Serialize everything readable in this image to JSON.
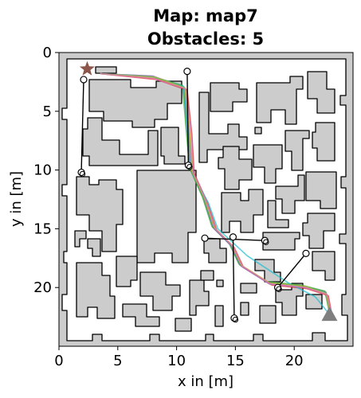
{
  "chart_data": {
    "type": "scatter",
    "title_line1": "Map: map7",
    "title_line2": "Obstacles: 5",
    "xlabel": "x in [m]",
    "ylabel": "y in [m]",
    "xlim": [
      0,
      25
    ],
    "ylim": [
      25,
      0
    ],
    "y_inverted": true,
    "xticks": [
      0,
      5,
      10,
      15,
      20
    ],
    "yticks": [
      0,
      5,
      10,
      15,
      20
    ],
    "grid": false,
    "colors": {
      "background_obstacle": "#cccccc",
      "free_space": "#ffffff",
      "outline": "#000000",
      "start_marker": "#8c564b",
      "goal_marker": "#7f7f7f"
    },
    "start": {
      "marker": "star",
      "x": 2.4,
      "y": 1.4
    },
    "goal": {
      "marker": "triangle",
      "x": 23.0,
      "y": 22.3
    },
    "obstacles": [
      {
        "id": 1,
        "from": [
          2.1,
          2.3
        ],
        "to": [
          1.9,
          10.2
        ]
      },
      {
        "id": 2,
        "from": [
          10.9,
          1.6
        ],
        "to": [
          11.0,
          9.6
        ]
      },
      {
        "id": 3,
        "from": [
          12.4,
          15.8
        ],
        "to": [
          17.5,
          16.0
        ]
      },
      {
        "id": 4,
        "from": [
          14.8,
          15.7
        ],
        "to": [
          14.9,
          22.6
        ]
      },
      {
        "id": 5,
        "from": [
          21.0,
          17.1
        ],
        "to": [
          18.6,
          20.0
        ]
      }
    ],
    "trajectories": [
      {
        "color": "#1f77b4",
        "points": [
          [
            3.5,
            1.8
          ],
          [
            8.0,
            2.1
          ],
          [
            10.6,
            2.9
          ],
          [
            10.9,
            6.5
          ],
          [
            11.2,
            10.0
          ],
          [
            12.3,
            12.4
          ],
          [
            13.1,
            14.9
          ],
          [
            14.6,
            16.4
          ],
          [
            15.4,
            18.1
          ],
          [
            17.8,
            19.6
          ],
          [
            20.8,
            19.9
          ],
          [
            22.7,
            20.4
          ],
          [
            23.1,
            22.2
          ]
        ]
      },
      {
        "color": "#ff7f0e",
        "points": [
          [
            3.5,
            1.8
          ],
          [
            8.2,
            2.2
          ],
          [
            10.8,
            3.1
          ],
          [
            11.1,
            6.8
          ],
          [
            11.4,
            10.2
          ],
          [
            12.5,
            12.6
          ],
          [
            13.3,
            15.0
          ],
          [
            14.8,
            16.5
          ],
          [
            15.6,
            18.2
          ],
          [
            18.0,
            19.7
          ],
          [
            21.0,
            20.0
          ],
          [
            22.8,
            20.6
          ],
          [
            23.1,
            22.3
          ]
        ]
      },
      {
        "color": "#2ca02c",
        "points": [
          [
            3.5,
            1.8
          ],
          [
            7.8,
            2.0
          ],
          [
            10.5,
            2.8
          ],
          [
            10.8,
            6.4
          ],
          [
            11.1,
            9.8
          ],
          [
            12.2,
            12.3
          ],
          [
            13.0,
            14.8
          ],
          [
            14.5,
            16.3
          ],
          [
            15.3,
            18.0
          ],
          [
            17.7,
            19.5
          ],
          [
            20.6,
            19.8
          ],
          [
            22.6,
            20.3
          ],
          [
            23.0,
            22.2
          ]
        ]
      },
      {
        "color": "#d62728",
        "points": [
          [
            3.5,
            1.8
          ],
          [
            8.3,
            2.3
          ],
          [
            10.9,
            3.2
          ],
          [
            11.3,
            7.0
          ],
          [
            11.5,
            10.3
          ],
          [
            12.6,
            12.7
          ],
          [
            13.4,
            15.1
          ],
          [
            14.9,
            16.6
          ],
          [
            15.7,
            18.3
          ],
          [
            18.1,
            19.8
          ],
          [
            21.1,
            20.1
          ],
          [
            22.9,
            20.7
          ],
          [
            23.2,
            22.3
          ]
        ]
      },
      {
        "color": "#9467bd",
        "points": [
          [
            3.5,
            1.8
          ],
          [
            8.0,
            2.0
          ],
          [
            10.7,
            3.0
          ],
          [
            11.0,
            6.6
          ],
          [
            11.3,
            10.1
          ],
          [
            12.4,
            12.5
          ],
          [
            13.2,
            15.0
          ],
          [
            14.7,
            16.5
          ],
          [
            15.5,
            18.2
          ],
          [
            17.9,
            19.7
          ],
          [
            20.9,
            20.0
          ],
          [
            22.7,
            20.5
          ],
          [
            23.1,
            22.2
          ]
        ]
      },
      {
        "color": "#17becf",
        "points": [
          [
            3.5,
            1.8
          ],
          [
            8.1,
            2.1
          ],
          [
            10.6,
            2.9
          ],
          [
            11.0,
            6.7
          ],
          [
            11.4,
            10.4
          ],
          [
            12.7,
            12.8
          ],
          [
            13.5,
            15.0
          ],
          [
            16.0,
            17.3
          ],
          [
            19.5,
            19.6
          ],
          [
            21.8,
            20.8
          ],
          [
            23.0,
            22.3
          ]
        ]
      },
      {
        "color": "#bcbd22",
        "points": [
          [
            3.5,
            1.8
          ],
          [
            8.2,
            2.1
          ],
          [
            10.7,
            3.0
          ],
          [
            11.1,
            6.7
          ],
          [
            11.3,
            10.1
          ],
          [
            12.4,
            12.5
          ],
          [
            13.2,
            14.9
          ],
          [
            14.7,
            16.4
          ],
          [
            15.5,
            18.1
          ],
          [
            17.9,
            19.6
          ],
          [
            20.9,
            19.9
          ],
          [
            22.7,
            20.5
          ],
          [
            23.1,
            22.2
          ]
        ]
      },
      {
        "color": "#e377c2",
        "points": [
          [
            3.5,
            1.8
          ],
          [
            8.0,
            2.2
          ],
          [
            10.8,
            3.1
          ],
          [
            11.2,
            6.9
          ],
          [
            11.4,
            10.2
          ],
          [
            12.5,
            12.6
          ],
          [
            13.3,
            15.0
          ],
          [
            14.8,
            16.5
          ],
          [
            15.6,
            18.2
          ],
          [
            18.0,
            19.7
          ],
          [
            21.0,
            20.0
          ],
          [
            22.8,
            20.6
          ],
          [
            23.2,
            22.3
          ]
        ]
      }
    ]
  }
}
